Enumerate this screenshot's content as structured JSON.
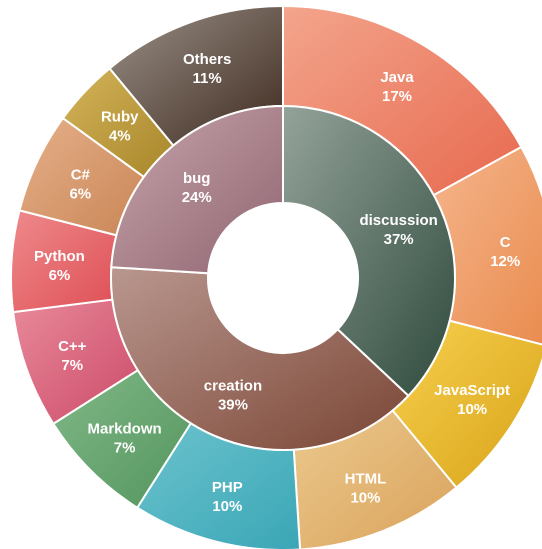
{
  "chart_data": {
    "type": "pie",
    "variant": "nested-donut",
    "inner_ring": {
      "slices": [
        {
          "name": "discussion",
          "pct": "37%",
          "value": 37,
          "color_start": "#94a39a",
          "color_end": "#2f4a3d"
        },
        {
          "name": "creation",
          "pct": "39%",
          "value": 39,
          "color_start": "#b9978f",
          "color_end": "#7a4534"
        },
        {
          "name": "bug",
          "pct": "24%",
          "value": 24,
          "color_start": "#c8a6ad",
          "color_end": "#8f6470"
        }
      ]
    },
    "outer_ring": {
      "slices": [
        {
          "name": "Java",
          "pct": "17%",
          "value": 17,
          "color_start": "#f3a58c",
          "color_end": "#e7694f"
        },
        {
          "name": "C",
          "pct": "12%",
          "value": 12,
          "color_start": "#f5b58c",
          "color_end": "#e98a4c"
        },
        {
          "name": "JavaScript",
          "pct": "10%",
          "value": 10,
          "color_start": "#f7d04e",
          "color_end": "#d8a218"
        },
        {
          "name": "HTML",
          "pct": "10%",
          "value": 10,
          "color_start": "#ecc98e",
          "color_end": "#d9a25a"
        },
        {
          "name": "PHP",
          "pct": "10%",
          "value": 10,
          "color_start": "#6cc3cd",
          "color_end": "#3aa6b6"
        },
        {
          "name": "Markdown",
          "pct": "7%",
          "value": 7,
          "color_start": "#7fb887",
          "color_end": "#55955e"
        },
        {
          "name": "C++",
          "pct": "7%",
          "value": 7,
          "color_start": "#e88a9a",
          "color_end": "#cc4a68"
        },
        {
          "name": "Python",
          "pct": "6%",
          "value": 6,
          "color_start": "#ee8a8c",
          "color_end": "#de4f55"
        },
        {
          "name": "C#",
          "pct": "6%",
          "value": 6,
          "color_start": "#e6b08a",
          "color_end": "#c98656"
        },
        {
          "name": "Ruby",
          "pct": "4%",
          "value": 4,
          "color_start": "#d4b45a",
          "color_end": "#a8862a"
        },
        {
          "name": "Others",
          "pct": "11%",
          "value": 11,
          "color_start": "#9a9188",
          "color_end": "#3f2a1f"
        }
      ]
    }
  }
}
